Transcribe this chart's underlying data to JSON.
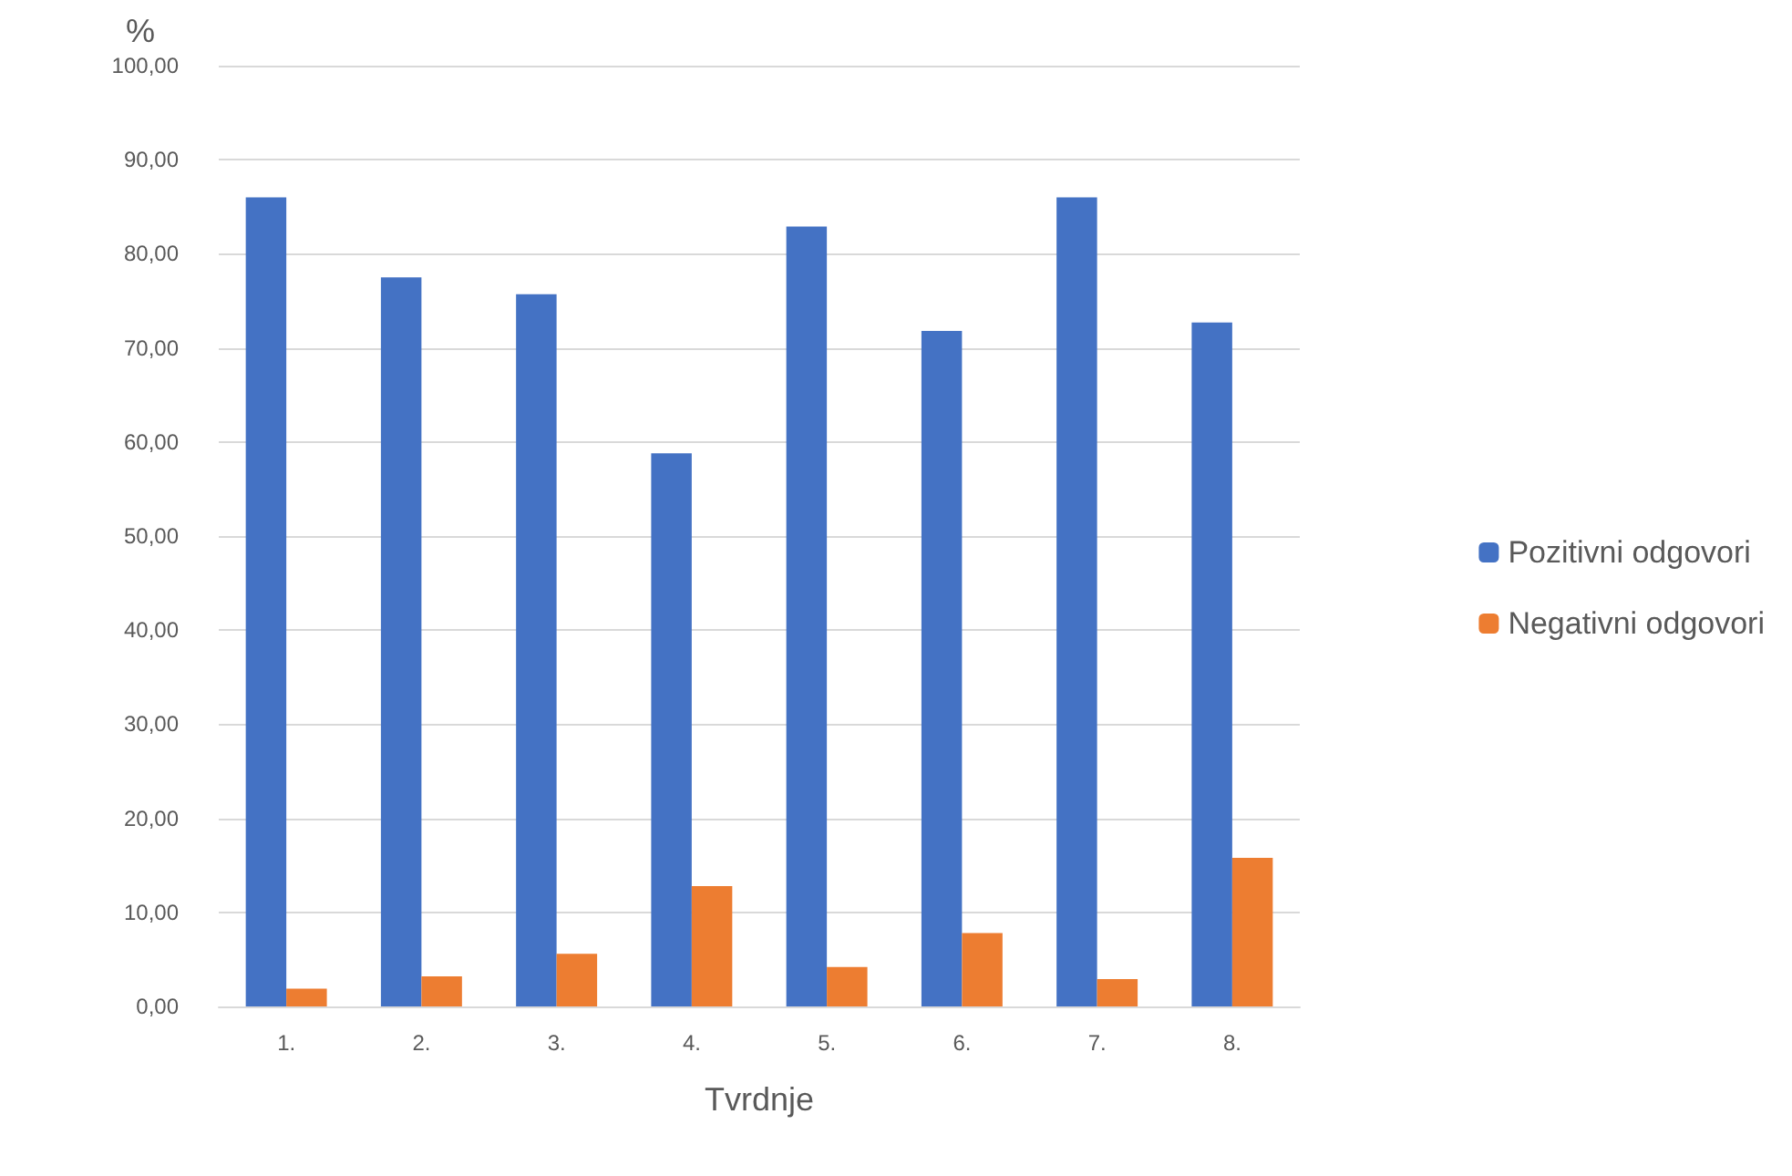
{
  "chart_data": {
    "type": "bar",
    "ylabel": "%",
    "xlabel": "Tvrdnje",
    "categories": [
      "1.",
      "2.",
      "3.",
      "4.",
      "5.",
      "6.",
      "7.",
      "8."
    ],
    "series": [
      {
        "name": "Pozitivni odgovori",
        "color": "#4472c4",
        "values": [
          86.0,
          77.5,
          75.7,
          58.8,
          82.9,
          71.8,
          86.0,
          72.7
        ]
      },
      {
        "name": "Negativni odgovori",
        "color": "#ed7d31",
        "values": [
          1.9,
          3.2,
          5.6,
          12.8,
          4.2,
          7.8,
          2.9,
          15.8
        ]
      }
    ],
    "ylim": [
      0,
      100
    ],
    "yticks": [
      {
        "value": 0,
        "label": "0,00"
      },
      {
        "value": 10,
        "label": "10,00"
      },
      {
        "value": 20,
        "label": "20,00"
      },
      {
        "value": 30,
        "label": "30,00"
      },
      {
        "value": 40,
        "label": "40,00"
      },
      {
        "value": 50,
        "label": "50,00"
      },
      {
        "value": 60,
        "label": "60,00"
      },
      {
        "value": 70,
        "label": "70,00"
      },
      {
        "value": 80,
        "label": "80,00"
      },
      {
        "value": 90,
        "label": "90,00"
      },
      {
        "value": 100,
        "label": "100,00"
      }
    ],
    "grid": "y",
    "legend": "right"
  }
}
